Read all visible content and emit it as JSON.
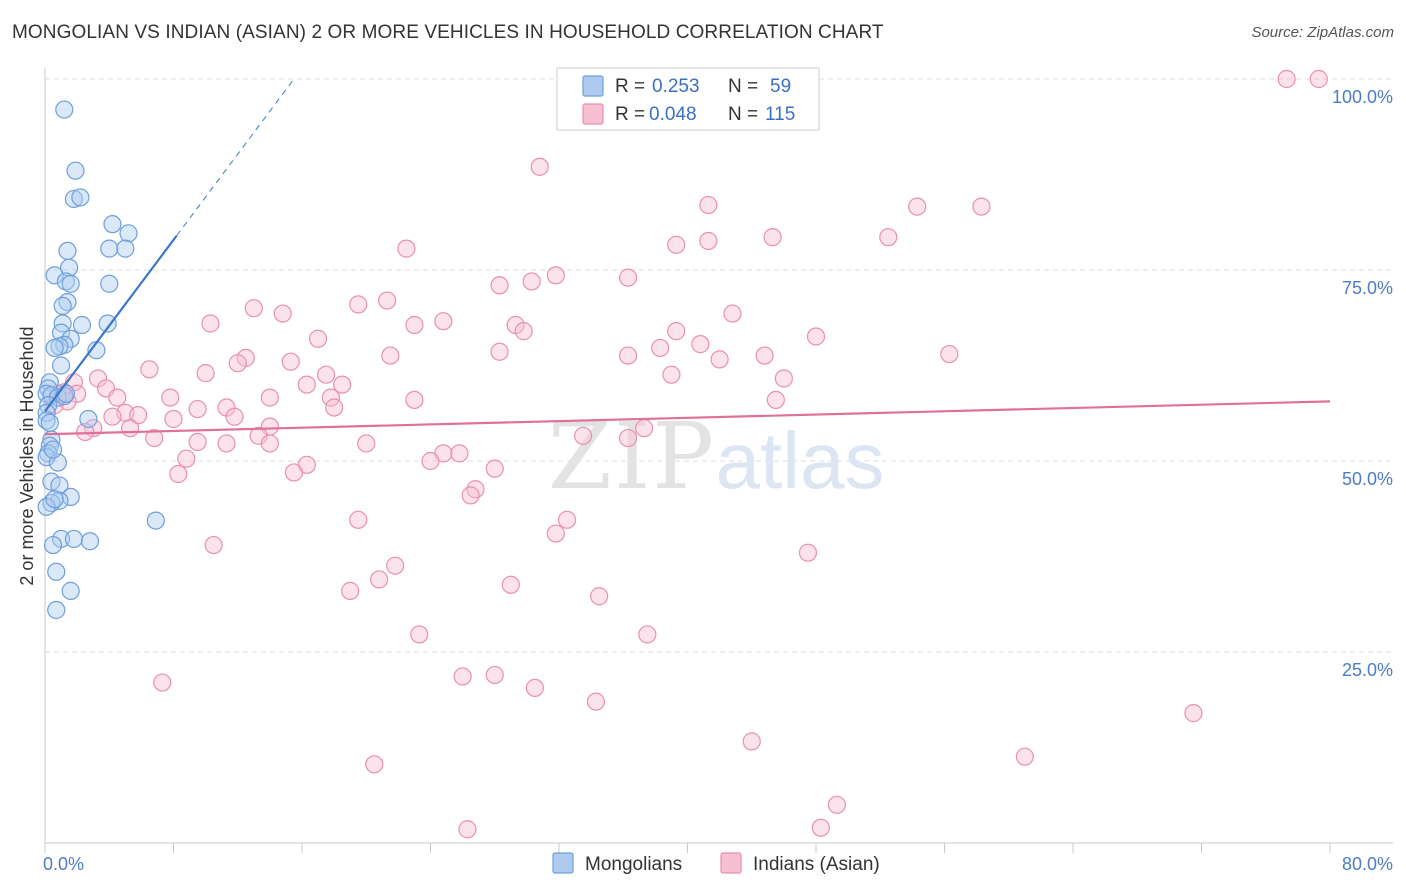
{
  "title": "MONGOLIAN VS INDIAN (ASIAN) 2 OR MORE VEHICLES IN HOUSEHOLD CORRELATION CHART",
  "source": "Source: ZipAtlas.com",
  "watermark": {
    "zip": "ZIP",
    "atlas": "atlas"
  },
  "colors": {
    "blue": "#3b78c9",
    "blue_fill": "#aecbef",
    "blue_stroke": "#6f9fdc",
    "pink": "#e0709a",
    "pink_fill": "#f6bfd2",
    "pink_stroke": "#ea8fb1",
    "tick_label": "#4d7cc7",
    "grid": "#dddddd"
  },
  "legend": {
    "rows": [
      {
        "r_label": "R =",
        "r_value": "0.253",
        "n_label": "N =",
        "n_value": "59"
      },
      {
        "r_label": "R =",
        "r_value": "0.048",
        "n_label": "N =",
        "n_value": "115"
      }
    ],
    "bottom": [
      "Mongolians",
      "Indians (Asian)"
    ]
  },
  "chart_data": {
    "type": "scatter",
    "title": "MONGOLIAN VS INDIAN (ASIAN) 2 OR MORE VEHICLES IN HOUSEHOLD CORRELATION CHART",
    "xlabel": "",
    "ylabel": "2 or more Vehicles in Household",
    "xlim": [
      0,
      80
    ],
    "ylim": [
      0,
      100
    ],
    "x_tick_labels": [
      "0.0%",
      "80.0%"
    ],
    "y_ticks": [
      25,
      50,
      75,
      100
    ],
    "y_tick_labels": [
      "25.0%",
      "50.0%",
      "75.0%",
      "100.0%"
    ],
    "grid": true,
    "legend_position": "top-center",
    "series": [
      {
        "name": "Mongolians",
        "R": 0.253,
        "N": 59,
        "trend": {
          "x0": 0.0,
          "y0": 56.5,
          "x1": 8.2,
          "y1": 79.5,
          "dash_to_x": 15.5,
          "dash_to_y": 100
        },
        "points": [
          [
            1.2,
            96.0
          ],
          [
            1.9,
            88.0
          ],
          [
            1.8,
            84.3
          ],
          [
            2.2,
            84.5
          ],
          [
            4.2,
            81.0
          ],
          [
            5.2,
            79.8
          ],
          [
            4.0,
            77.8
          ],
          [
            5.0,
            77.8
          ],
          [
            1.4,
            77.5
          ],
          [
            1.5,
            75.3
          ],
          [
            0.6,
            74.3
          ],
          [
            1.3,
            73.5
          ],
          [
            1.6,
            73.2
          ],
          [
            4.0,
            73.2
          ],
          [
            1.4,
            70.8
          ],
          [
            1.1,
            70.3
          ],
          [
            2.3,
            67.8
          ],
          [
            3.9,
            68.0
          ],
          [
            1.1,
            68.0
          ],
          [
            1.0,
            66.8
          ],
          [
            1.6,
            66.0
          ],
          [
            1.2,
            65.2
          ],
          [
            0.9,
            65.0
          ],
          [
            0.6,
            64.8
          ],
          [
            3.2,
            64.5
          ],
          [
            1.0,
            62.5
          ],
          [
            0.3,
            60.3
          ],
          [
            0.2,
            59.5
          ],
          [
            0.1,
            58.8
          ],
          [
            0.4,
            58.6
          ],
          [
            0.8,
            58.3
          ],
          [
            1.2,
            58.5
          ],
          [
            0.2,
            57.3
          ],
          [
            0.1,
            56.3
          ],
          [
            2.7,
            55.5
          ],
          [
            0.1,
            55.3
          ],
          [
            0.4,
            52.8
          ],
          [
            0.3,
            52.0
          ],
          [
            0.2,
            51.0
          ],
          [
            0.1,
            50.5
          ],
          [
            0.8,
            49.8
          ],
          [
            0.4,
            47.3
          ],
          [
            0.9,
            46.8
          ],
          [
            1.6,
            45.3
          ],
          [
            0.9,
            44.8
          ],
          [
            0.4,
            44.5
          ],
          [
            0.1,
            44.0
          ],
          [
            6.9,
            42.2
          ],
          [
            1.0,
            39.8
          ],
          [
            1.8,
            39.8
          ],
          [
            2.8,
            39.5
          ],
          [
            0.5,
            39.0
          ],
          [
            0.7,
            35.5
          ],
          [
            1.6,
            33.0
          ],
          [
            0.7,
            30.5
          ],
          [
            0.3,
            55.0
          ],
          [
            0.5,
            51.5
          ],
          [
            1.3,
            58.8
          ],
          [
            0.6,
            45.0
          ]
        ]
      },
      {
        "name": "Indians (Asian)",
        "R": 0.048,
        "N": 115,
        "trend": {
          "x0": 0.0,
          "y0": 53.5,
          "x1": 80.0,
          "y1": 57.8
        },
        "points": [
          [
            77.3,
            100.0
          ],
          [
            79.3,
            100.0
          ],
          [
            30.8,
            88.5
          ],
          [
            41.3,
            83.5
          ],
          [
            54.3,
            83.3
          ],
          [
            45.3,
            79.3
          ],
          [
            39.3,
            78.3
          ],
          [
            41.3,
            78.8
          ],
          [
            22.5,
            77.8
          ],
          [
            31.8,
            74.3
          ],
          [
            36.3,
            74.0
          ],
          [
            28.3,
            73.0
          ],
          [
            30.3,
            73.5
          ],
          [
            21.3,
            71.0
          ],
          [
            19.5,
            70.5
          ],
          [
            13.0,
            70.0
          ],
          [
            14.8,
            69.3
          ],
          [
            42.8,
            69.3
          ],
          [
            10.3,
            68.0
          ],
          [
            23.0,
            67.8
          ],
          [
            24.8,
            68.3
          ],
          [
            29.3,
            67.8
          ],
          [
            29.8,
            67.0
          ],
          [
            39.3,
            67.0
          ],
          [
            48.0,
            66.3
          ],
          [
            17.0,
            66.0
          ],
          [
            40.8,
            65.3
          ],
          [
            38.3,
            64.8
          ],
          [
            28.3,
            64.3
          ],
          [
            21.5,
            63.8
          ],
          [
            36.3,
            63.8
          ],
          [
            44.8,
            63.8
          ],
          [
            56.3,
            64.0
          ],
          [
            42.0,
            63.3
          ],
          [
            12.5,
            63.5
          ],
          [
            12.0,
            62.8
          ],
          [
            15.3,
            63.0
          ],
          [
            6.5,
            62.0
          ],
          [
            10.0,
            61.5
          ],
          [
            39.0,
            61.3
          ],
          [
            17.5,
            61.3
          ],
          [
            46.0,
            60.8
          ],
          [
            3.3,
            60.8
          ],
          [
            1.8,
            60.3
          ],
          [
            16.3,
            60.0
          ],
          [
            18.5,
            60.0
          ],
          [
            3.8,
            59.5
          ],
          [
            1.2,
            59.0
          ],
          [
            2.0,
            58.8
          ],
          [
            0.8,
            58.8
          ],
          [
            7.8,
            58.3
          ],
          [
            4.5,
            58.3
          ],
          [
            14.0,
            58.3
          ],
          [
            23.0,
            58.0
          ],
          [
            17.8,
            58.3
          ],
          [
            1.4,
            57.8
          ],
          [
            0.6,
            57.3
          ],
          [
            45.5,
            58.0
          ],
          [
            18.0,
            57.0
          ],
          [
            9.5,
            56.8
          ],
          [
            11.3,
            57.0
          ],
          [
            5.0,
            56.3
          ],
          [
            5.8,
            56.0
          ],
          [
            4.2,
            55.8
          ],
          [
            11.8,
            55.8
          ],
          [
            8.0,
            55.5
          ],
          [
            5.3,
            54.3
          ],
          [
            3.0,
            54.3
          ],
          [
            14.0,
            54.5
          ],
          [
            2.5,
            53.8
          ],
          [
            13.3,
            53.3
          ],
          [
            6.8,
            53.0
          ],
          [
            20.0,
            52.3
          ],
          [
            9.5,
            52.5
          ],
          [
            11.3,
            52.3
          ],
          [
            14.0,
            52.3
          ],
          [
            33.5,
            53.3
          ],
          [
            36.3,
            53.0
          ],
          [
            37.3,
            54.3
          ],
          [
            24.8,
            51.0
          ],
          [
            25.8,
            51.0
          ],
          [
            24.0,
            50.0
          ],
          [
            8.8,
            50.3
          ],
          [
            16.3,
            49.5
          ],
          [
            15.5,
            48.5
          ],
          [
            28.0,
            49.0
          ],
          [
            8.3,
            48.3
          ],
          [
            26.8,
            46.3
          ],
          [
            26.5,
            45.5
          ],
          [
            32.5,
            42.3
          ],
          [
            19.5,
            42.3
          ],
          [
            31.8,
            40.5
          ],
          [
            10.5,
            39.0
          ],
          [
            47.5,
            38.0
          ],
          [
            21.8,
            36.3
          ],
          [
            20.8,
            34.5
          ],
          [
            29.0,
            33.8
          ],
          [
            19.0,
            33.0
          ],
          [
            34.5,
            32.3
          ],
          [
            23.3,
            27.3
          ],
          [
            37.5,
            27.3
          ],
          [
            26.0,
            21.8
          ],
          [
            28.0,
            22.0
          ],
          [
            7.3,
            21.0
          ],
          [
            30.5,
            20.3
          ],
          [
            34.3,
            18.5
          ],
          [
            71.5,
            17.0
          ],
          [
            44.0,
            13.3
          ],
          [
            61.0,
            11.3
          ],
          [
            20.5,
            10.3
          ],
          [
            49.3,
            5.0
          ],
          [
            26.3,
            1.8
          ],
          [
            48.3,
            2.0
          ],
          [
            58.3,
            83.3
          ],
          [
            52.5,
            79.3
          ]
        ]
      }
    ]
  }
}
